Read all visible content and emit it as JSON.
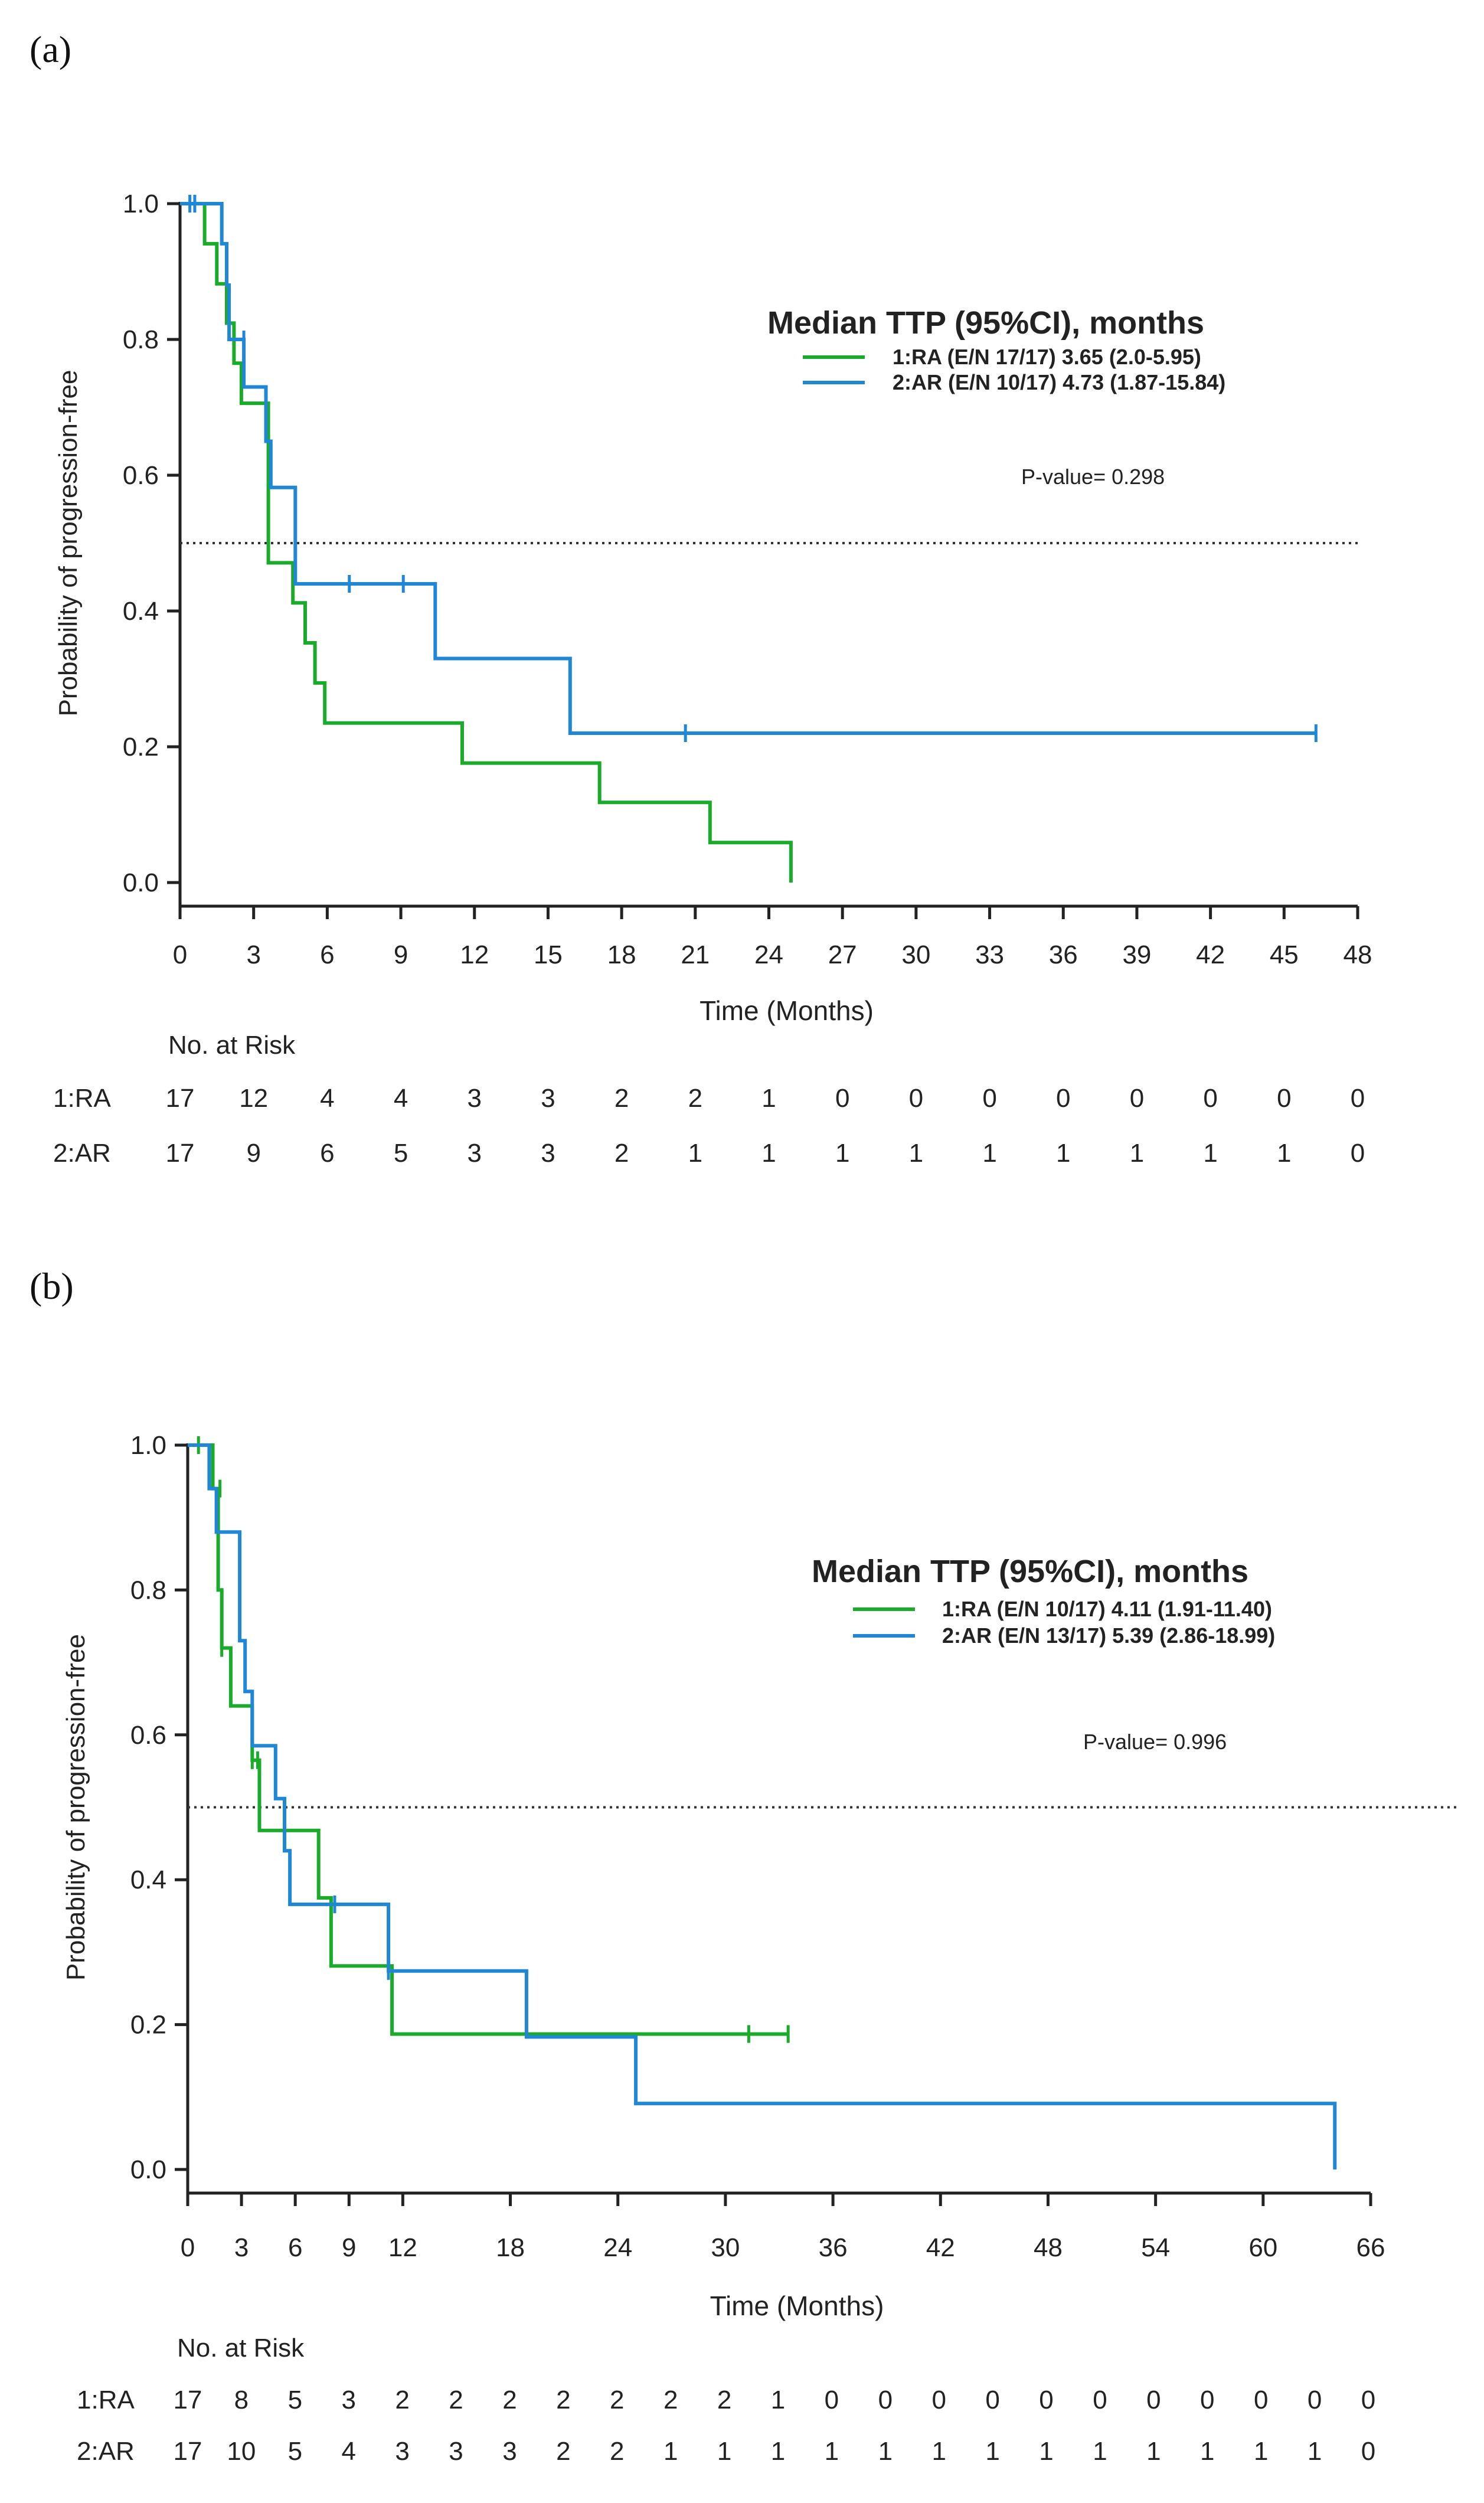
{
  "chart_data": [
    {
      "type": "line",
      "panel_label": "(a)",
      "ylabel": "Probability of progression-free",
      "xlabel": "Time (Months)",
      "xlim": [
        0,
        48
      ],
      "ylim": [
        0,
        1
      ],
      "x_ticks": [
        0,
        3,
        6,
        9,
        12,
        15,
        18,
        21,
        24,
        27,
        30,
        33,
        36,
        39,
        42,
        45,
        48
      ],
      "y_ticks": [
        "0.0",
        "0.2",
        "0.4",
        "0.6",
        "0.8",
        "1.0"
      ],
      "median_reference": 0.5,
      "legend": {
        "title": "Median TTP (95%CI), months",
        "entries": [
          "1:RA  (E/N 17/17) 3.65 (2.0-5.95)",
          "2:AR  (E/N 10/17) 4.73 (1.87-15.84)"
        ]
      },
      "p_value": "P-value= 0.298",
      "series": [
        {
          "name": "1:RA",
          "color": "#1aab2a",
          "steps": [
            [
              0,
              1
            ],
            [
              1,
              1
            ],
            [
              1,
              0.941
            ],
            [
              1.5,
              0.941
            ],
            [
              1.5,
              0.882
            ],
            [
              1.9,
              0.882
            ],
            [
              1.9,
              0.824
            ],
            [
              2.2,
              0.824
            ],
            [
              2.2,
              0.765
            ],
            [
              2.5,
              0.765
            ],
            [
              2.5,
              0.706
            ],
            [
              3.6,
              0.706
            ],
            [
              3.6,
              0.471
            ],
            [
              4.6,
              0.471
            ],
            [
              4.6,
              0.412
            ],
            [
              5.1,
              0.412
            ],
            [
              5.1,
              0.353
            ],
            [
              5.5,
              0.353
            ],
            [
              5.5,
              0.294
            ],
            [
              5.9,
              0.294
            ],
            [
              5.9,
              0.235
            ],
            [
              11.5,
              0.235
            ],
            [
              11.5,
              0.176
            ],
            [
              17.1,
              0.176
            ],
            [
              17.1,
              0.118
            ],
            [
              21.6,
              0.118
            ],
            [
              21.6,
              0.059
            ],
            [
              24.9,
              0.059
            ],
            [
              24.9,
              0
            ]
          ],
          "censors": []
        },
        {
          "name": "2:AR",
          "color": "#1f87d6",
          "steps": [
            [
              0,
              1
            ],
            [
              1.7,
              1
            ],
            [
              1.7,
              0.941
            ],
            [
              1.9,
              0.941
            ],
            [
              1.9,
              0.88
            ],
            [
              2,
              0.88
            ],
            [
              2,
              0.8
            ],
            [
              2.6,
              0.8
            ],
            [
              2.6,
              0.73
            ],
            [
              3.5,
              0.73
            ],
            [
              3.5,
              0.65
            ],
            [
              3.7,
              0.65
            ],
            [
              3.7,
              0.582
            ],
            [
              4.7,
              0.582
            ],
            [
              4.7,
              0.44
            ],
            [
              10.4,
              0.44
            ],
            [
              10.4,
              0.33
            ],
            [
              15.9,
              0.33
            ],
            [
              15.9,
              0.22
            ],
            [
              46.3,
              0.22
            ]
          ],
          "censors": [
            [
              0.4,
              1
            ],
            [
              0.6,
              1
            ],
            [
              2.6,
              0.8
            ],
            [
              6.9,
              0.44
            ],
            [
              9.1,
              0.44
            ],
            [
              20.6,
              0.22
            ],
            [
              46.3,
              0.22
            ]
          ]
        }
      ],
      "risk_table": {
        "title": "No. at Risk",
        "rows": [
          {
            "label": "1:RA",
            "values": [
              "17",
              "12",
              "4",
              "4",
              "3",
              "3",
              "2",
              "2",
              "1",
              "0",
              "0",
              "0",
              "0",
              "0",
              "0",
              "0",
              "0"
            ]
          },
          {
            "label": "2:AR",
            "values": [
              "17",
              "9",
              "6",
              "5",
              "3",
              "3",
              "2",
              "1",
              "1",
              "1",
              "1",
              "1",
              "1",
              "1",
              "1",
              "1",
              "0"
            ]
          }
        ]
      }
    },
    {
      "type": "line",
      "panel_label": "(b)",
      "ylabel": "Probability of progression-free",
      "xlabel": "Time (Months)",
      "xlim": [
        0,
        66
      ],
      "ylim": [
        0,
        1
      ],
      "x_ticks": [
        0,
        3,
        6,
        9,
        12,
        18,
        24,
        30,
        36,
        42,
        48,
        54,
        60,
        66
      ],
      "x_tick_labels": [
        "0",
        "3",
        "6",
        "9",
        "12",
        "18",
        "24",
        "30",
        "36",
        "42",
        "48",
        "54",
        "60",
        "66"
      ],
      "y_ticks": [
        "0.0",
        "0.2",
        "0.4",
        "0.6",
        "0.8",
        "1.0"
      ],
      "median_reference": 0.5,
      "legend": {
        "title": "Median TTP (95%CI), months",
        "entries": [
          "1:RA  (E/N 10/17) 4.11 (1.91-11.40)",
          "2:AR  (E/N 13/17) 5.39 (2.86-18.99)"
        ]
      },
      "p_value": "P-value= 0.996",
      "series": [
        {
          "name": "1:RA",
          "color": "#1aab2a",
          "steps": [
            [
              0,
              1
            ],
            [
              1.4,
              1
            ],
            [
              1.4,
              0.94
            ],
            [
              1.7,
              0.94
            ],
            [
              1.7,
              0.8
            ],
            [
              1.9,
              0.8
            ],
            [
              1.9,
              0.72
            ],
            [
              2.4,
              0.72
            ],
            [
              2.4,
              0.64
            ],
            [
              3.6,
              0.64
            ],
            [
              3.6,
              0.565
            ],
            [
              4,
              0.565
            ],
            [
              4,
              0.468
            ],
            [
              7.3,
              0.468
            ],
            [
              7.3,
              0.375
            ],
            [
              8,
              0.375
            ],
            [
              8,
              0.281
            ],
            [
              11.4,
              0.281
            ],
            [
              11.4,
              0.187
            ],
            [
              33.5,
              0.187
            ]
          ],
          "censors": [
            [
              0.6,
              1
            ],
            [
              1.8,
              0.94
            ],
            [
              1.9,
              0.72
            ],
            [
              3.6,
              0.565
            ],
            [
              3.9,
              0.565
            ],
            [
              31.3,
              0.187
            ],
            [
              33.5,
              0.187
            ]
          ]
        },
        {
          "name": "2:AR",
          "color": "#1f87d6",
          "steps": [
            [
              0,
              1
            ],
            [
              1.2,
              1
            ],
            [
              1.2,
              0.94
            ],
            [
              1.6,
              0.94
            ],
            [
              1.6,
              0.88
            ],
            [
              2.9,
              0.88
            ],
            [
              2.9,
              0.73
            ],
            [
              3.2,
              0.73
            ],
            [
              3.2,
              0.66
            ],
            [
              3.6,
              0.66
            ],
            [
              3.6,
              0.585
            ],
            [
              4.9,
              0.585
            ],
            [
              4.9,
              0.512
            ],
            [
              5.4,
              0.512
            ],
            [
              5.4,
              0.44
            ],
            [
              5.7,
              0.44
            ],
            [
              5.7,
              0.366
            ],
            [
              11.2,
              0.366
            ],
            [
              11.2,
              0.274
            ],
            [
              18.9,
              0.274
            ],
            [
              18.9,
              0.183
            ],
            [
              25,
              0.183
            ],
            [
              25,
              0.091
            ],
            [
              64,
              0.091
            ],
            [
              64,
              0
            ]
          ],
          "censors": [
            [
              8.2,
              0.366
            ],
            [
              11.2,
              0.274
            ]
          ]
        }
      ],
      "risk_table": {
        "title": "No. at Risk",
        "times": [
          0,
          3,
          6,
          9,
          12,
          15,
          18,
          21,
          24,
          27,
          30,
          33,
          36,
          39,
          42,
          45,
          48,
          51,
          54,
          57,
          60,
          63,
          66
        ],
        "rows": [
          {
            "label": "1:RA",
            "values": [
              "17",
              "8",
              "5",
              "3",
              "2",
              "2",
              "2",
              "2",
              "2",
              "2",
              "2",
              "1",
              "0",
              "0",
              "0",
              "0",
              "0",
              "0",
              "0",
              "0",
              "0",
              "0",
              "0"
            ]
          },
          {
            "label": "2:AR",
            "values": [
              "17",
              "10",
              "5",
              "4",
              "3",
              "3",
              "3",
              "2",
              "2",
              "1",
              "1",
              "1",
              "1",
              "1",
              "1",
              "1",
              "1",
              "1",
              "1",
              "1",
              "1",
              "1",
              "0"
            ]
          }
        ]
      }
    }
  ]
}
